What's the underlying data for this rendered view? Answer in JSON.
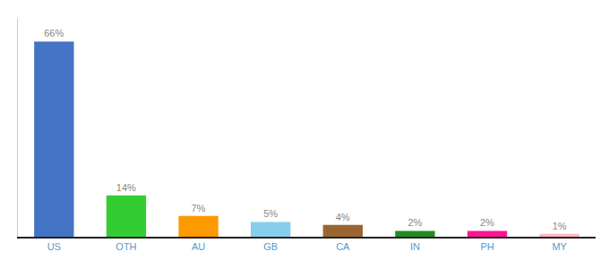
{
  "chart_data": {
    "type": "bar",
    "categories": [
      "US",
      "OTH",
      "AU",
      "GB",
      "CA",
      "IN",
      "PH",
      "MY"
    ],
    "values": [
      66,
      14,
      7,
      5,
      4,
      2,
      2,
      1
    ],
    "value_labels": [
      "66%",
      "14%",
      "7%",
      "5%",
      "4%",
      "2%",
      "2%",
      "1%"
    ],
    "colors": [
      "#4472c4",
      "#33cc33",
      "#ff9900",
      "#87ceeb",
      "#996633",
      "#228b22",
      "#ff1493",
      "#ffb6c1"
    ],
    "ylim": [
      0,
      74
    ],
    "data_labels": true,
    "tick_labels": "x",
    "grid": false
  }
}
